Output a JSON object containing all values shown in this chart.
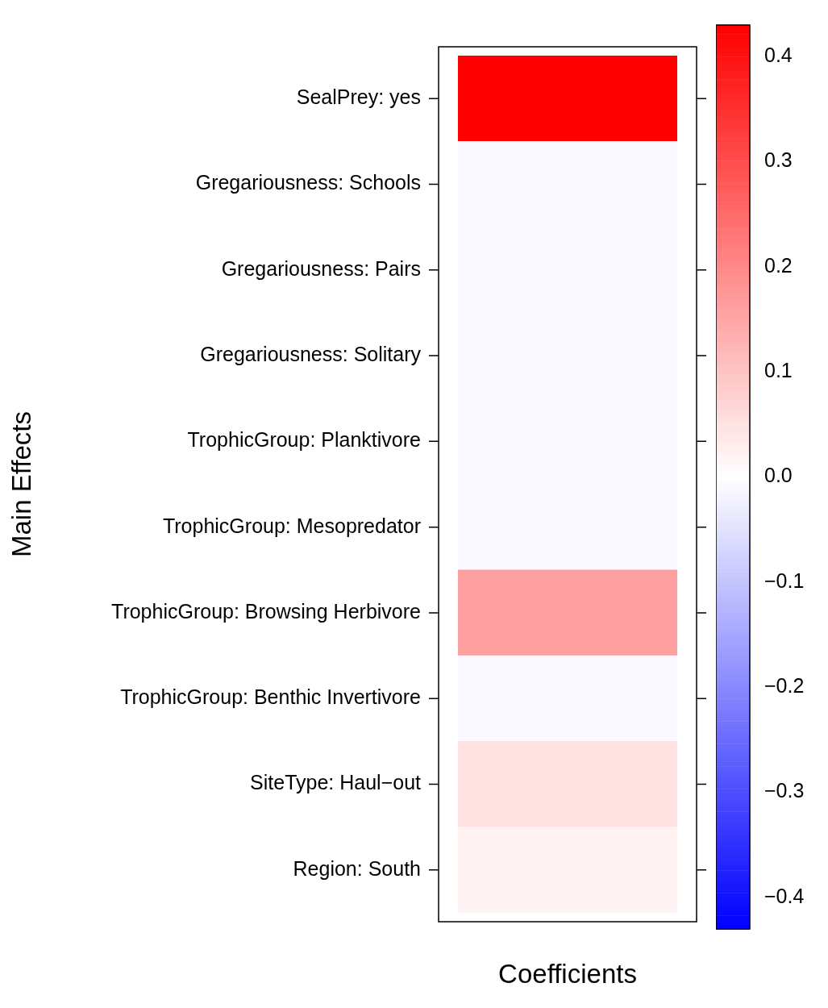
{
  "chart_data": {
    "type": "heatmap",
    "xlabel": "Coefficients",
    "ylabel": "Main Effects",
    "categories": [
      null
    ],
    "y_categories": [
      "SealPrey: yes",
      "Gregariousness: Schools",
      "Gregariousness: Pairs",
      "Gregariousness: Solitary",
      "TrophicGroup: Planktivore",
      "TrophicGroup: Mesopredator",
      "TrophicGroup: Browsing Herbivore",
      "TrophicGroup: Benthic Invertivore",
      "SiteType: Haul−out",
      "Region: South"
    ],
    "cells": [
      [
        0.43
      ],
      [
        -0.01
      ],
      [
        -0.01
      ],
      [
        -0.01
      ],
      [
        -0.01
      ],
      [
        -0.01
      ],
      [
        0.16
      ],
      [
        -0.01
      ],
      [
        0.05
      ],
      [
        0.02
      ]
    ],
    "clim": [
      -0.43,
      0.43
    ],
    "cticks": [
      {
        "value": -0.4,
        "label": "−0.4"
      },
      {
        "value": -0.3,
        "label": "−0.3"
      },
      {
        "value": -0.2,
        "label": "−0.2"
      },
      {
        "value": -0.1,
        "label": "−0.1"
      },
      {
        "value": 0,
        "label": "0.0"
      },
      0.1,
      0.2,
      0.3,
      0.4
    ]
  }
}
